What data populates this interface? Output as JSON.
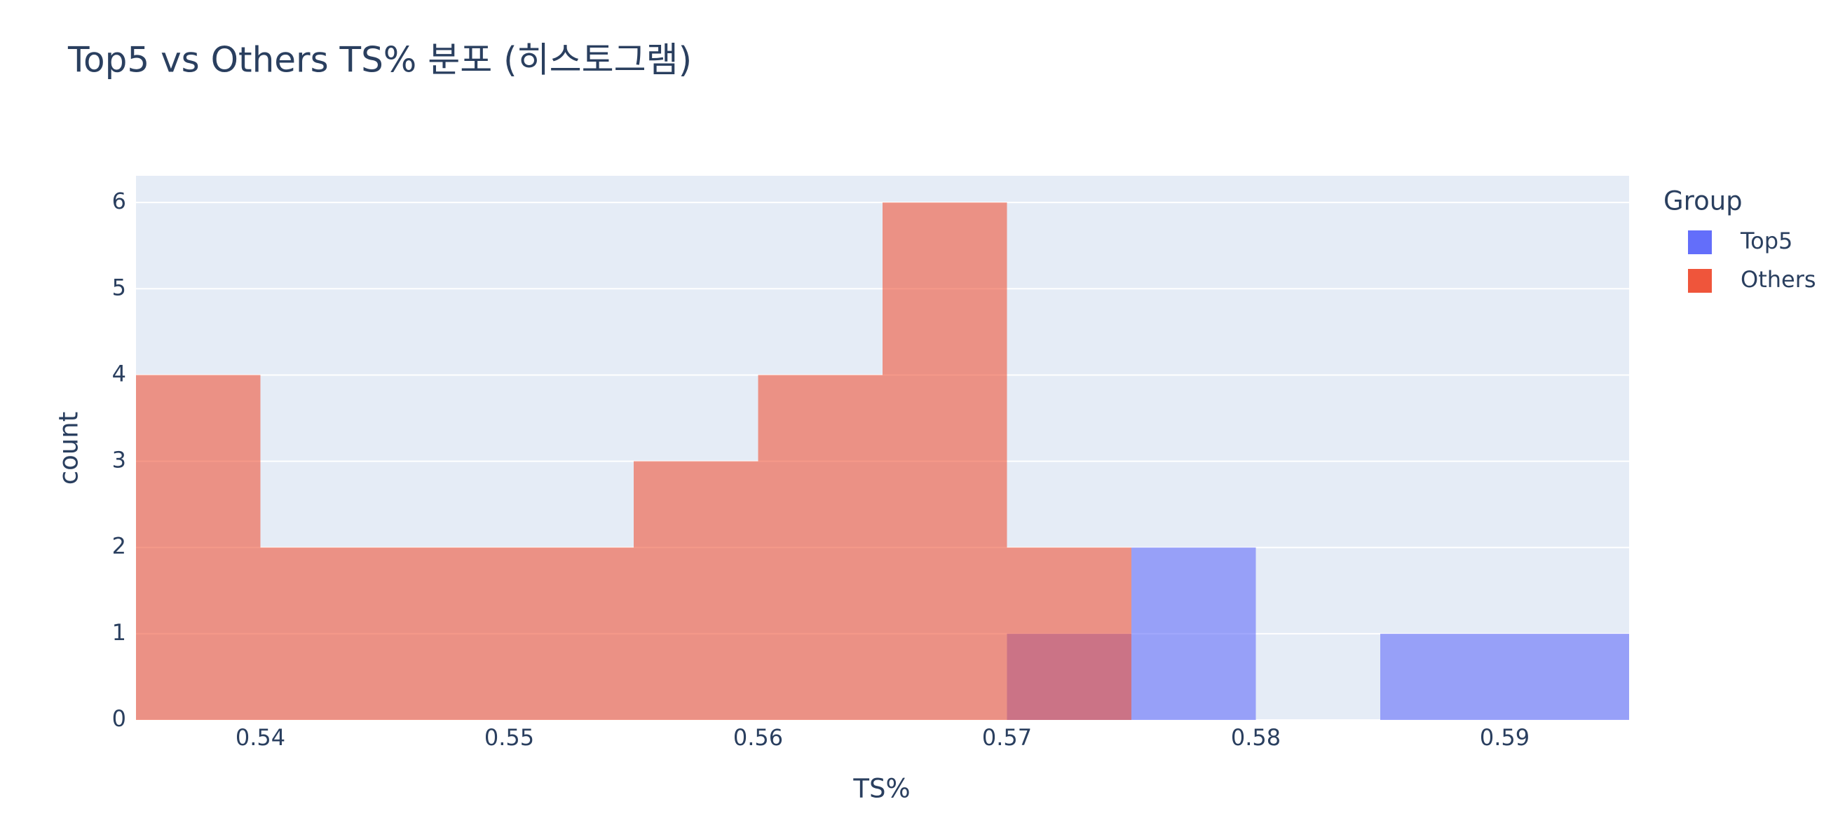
{
  "chart_data": {
    "type": "histogram",
    "title": "Top5 vs Others TS% 분포 (히스토그램)",
    "x_label": "TS%",
    "y_label": "count",
    "legend_title": "Group",
    "legend_position": "right",
    "opacity": 0.6,
    "grid": true,
    "xlim": [
      0.535,
      0.595
    ],
    "xticks": [
      0.54,
      0.55,
      0.56,
      0.57,
      0.58,
      0.59
    ],
    "ylim": [
      0,
      6.31
    ],
    "yticks": [
      0,
      1,
      2,
      3,
      4,
      5,
      6
    ],
    "series": [
      {
        "name": "Top5",
        "color": "#636efa",
        "bins": [
          0.57,
          0.575,
          0.58,
          0.585,
          0.59,
          0.595
        ],
        "values": [
          1,
          2,
          0,
          1,
          1
        ]
      },
      {
        "name": "Others",
        "color": "#EF553B",
        "bins": [
          0.535,
          0.54,
          0.545,
          0.55,
          0.555,
          0.56,
          0.565,
          0.57,
          0.575
        ],
        "values": [
          4,
          2,
          2,
          2,
          3,
          4,
          6,
          2
        ]
      }
    ]
  }
}
